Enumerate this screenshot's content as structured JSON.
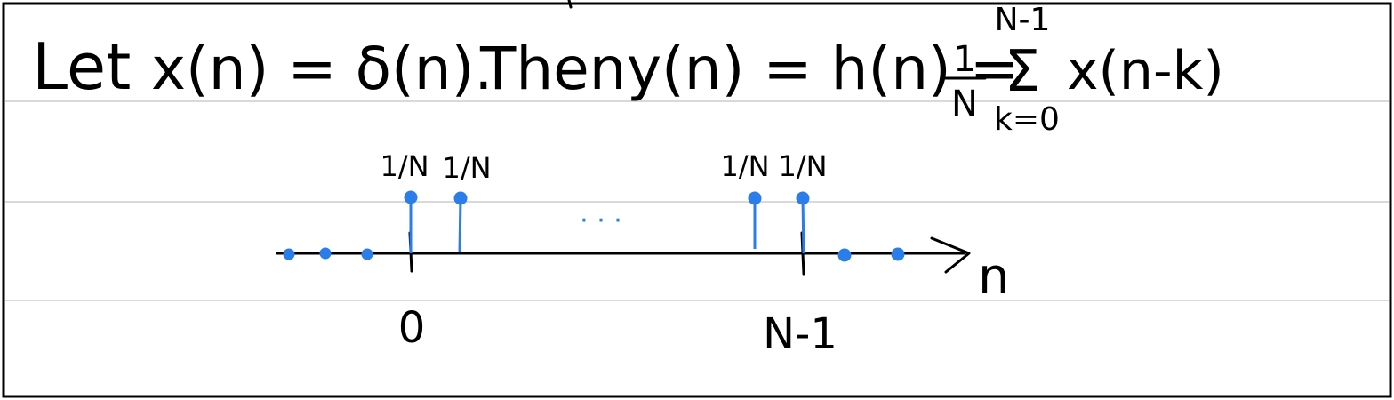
{
  "equation": {
    "lead": "Let",
    "x_def": "x(n) = δ(n).",
    "then": "Then",
    "y_def": "y(n) = h(n) =",
    "frac_num": "1",
    "frac_den": "N",
    "sum_upper": "N-1",
    "sum_symbol": "Σ",
    "sum_lower": "k=0",
    "summand": "x(n-k)"
  },
  "plot": {
    "axis_label": "n",
    "tick_labels": [
      "0",
      "N-1"
    ],
    "stem_labels": [
      "1/N",
      "1/N",
      "1/N",
      "1/N"
    ],
    "stem_color": "#2b7de9",
    "continuation": "· · ·"
  }
}
